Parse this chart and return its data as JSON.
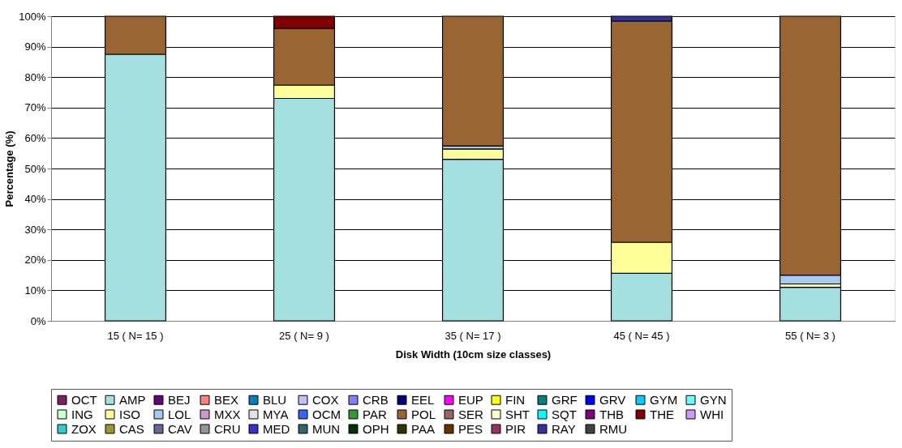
{
  "chart_data": {
    "type": "bar",
    "stacked": true,
    "xlabel": "Disk Width (10cm size classes)",
    "ylabel": "Percentage (%)",
    "categories": [
      "15 ( N= 15 )",
      "25 ( N= 9 )",
      "35 ( N= 17 )",
      "45 ( N= 45 )",
      "55 ( N= 3 )"
    ],
    "ylim": [
      0,
      100
    ],
    "yticks": [
      {
        "value": 0,
        "label": "0%"
      },
      {
        "value": 10,
        "label": "10%"
      },
      {
        "value": 20,
        "label": "20%"
      },
      {
        "value": 30,
        "label": "30%"
      },
      {
        "value": 40,
        "label": "40%"
      },
      {
        "value": 50,
        "label": "50%"
      },
      {
        "value": 60,
        "label": "60%"
      },
      {
        "value": 70,
        "label": "70%"
      },
      {
        "value": 80,
        "label": "80%"
      },
      {
        "value": 90,
        "label": "90%"
      },
      {
        "value": 100,
        "label": "100%"
      }
    ],
    "grid": "y",
    "legend": "bottom",
    "series": [
      {
        "name": "OCT",
        "color": "#7f1f5f",
        "values": [
          0,
          0,
          0,
          0,
          0
        ]
      },
      {
        "name": "AMP",
        "color": "#a4e0e0",
        "values": [
          87.5,
          73,
          53,
          15.6,
          11
        ]
      },
      {
        "name": "BEJ",
        "color": "#660080",
        "values": [
          0,
          0,
          0,
          0,
          0
        ]
      },
      {
        "name": "BEX",
        "color": "#ff8080",
        "values": [
          0,
          0,
          0,
          0,
          0
        ]
      },
      {
        "name": "BLU",
        "color": "#0080c0",
        "values": [
          0,
          0,
          0,
          0,
          0
        ]
      },
      {
        "name": "COX",
        "color": "#c0c0ff",
        "values": [
          0,
          0,
          0,
          0,
          0
        ]
      },
      {
        "name": "CRB",
        "color": "#8080ff",
        "values": [
          0,
          0,
          0,
          0,
          0
        ]
      },
      {
        "name": "EEL",
        "color": "#000080",
        "values": [
          0,
          0,
          0,
          0,
          0
        ]
      },
      {
        "name": "EUP",
        "color": "#ff00ff",
        "values": [
          0,
          0,
          0,
          0,
          0
        ]
      },
      {
        "name": "FIN",
        "color": "#ffff00",
        "values": [
          0,
          0,
          0,
          0,
          0
        ]
      },
      {
        "name": "GRF",
        "color": "#008080",
        "values": [
          0,
          0,
          0,
          0,
          0
        ]
      },
      {
        "name": "GRV",
        "color": "#0000ff",
        "values": [
          0,
          0,
          0,
          0,
          0
        ]
      },
      {
        "name": "GYM",
        "color": "#00ccff",
        "values": [
          0,
          0,
          0,
          0,
          0
        ]
      },
      {
        "name": "GYN",
        "color": "#66ffff",
        "values": [
          0,
          0,
          0,
          0,
          0
        ]
      },
      {
        "name": "ING",
        "color": "#ccffcc",
        "values": [
          0,
          0,
          0,
          0,
          0
        ]
      },
      {
        "name": "ISO",
        "color": "#ffff99",
        "values": [
          0,
          4.4,
          3.4,
          10.2,
          1.1
        ]
      },
      {
        "name": "LOL",
        "color": "#a6caf0",
        "values": [
          0,
          0,
          1,
          0,
          2.9
        ]
      },
      {
        "name": "MXX",
        "color": "#cc99cc",
        "values": [
          0,
          0,
          0,
          0,
          0
        ]
      },
      {
        "name": "MYA",
        "color": "#e3e3e3",
        "values": [
          0,
          0,
          0,
          0,
          0
        ]
      },
      {
        "name": "OCM",
        "color": "#3366ff",
        "values": [
          0,
          0,
          0,
          0,
          0
        ]
      },
      {
        "name": "PAR",
        "color": "#339933",
        "values": [
          0,
          0,
          0,
          0,
          0
        ]
      },
      {
        "name": "POL",
        "color": "#996633",
        "values": [
          12.5,
          18.6,
          42.6,
          72.6,
          85
        ]
      },
      {
        "name": "SER",
        "color": "#996666",
        "values": [
          0,
          0,
          0,
          0,
          0
        ]
      },
      {
        "name": "SHT",
        "color": "#ffffcc",
        "values": [
          0,
          0,
          0,
          0,
          0
        ]
      },
      {
        "name": "SQT",
        "color": "#00ffff",
        "values": [
          0,
          0,
          0,
          0,
          0
        ]
      },
      {
        "name": "THB",
        "color": "#800080",
        "values": [
          0,
          0,
          0,
          0,
          0
        ]
      },
      {
        "name": "THE",
        "color": "#800000",
        "values": [
          0,
          4,
          0,
          0,
          0
        ]
      },
      {
        "name": "WHI",
        "color": "#cc99ff",
        "values": [
          0,
          0,
          0,
          0,
          0
        ]
      },
      {
        "name": "ZOX",
        "color": "#33cccc",
        "values": [
          0,
          0,
          0,
          0,
          0
        ]
      },
      {
        "name": "CAS",
        "color": "#999933",
        "values": [
          0,
          0,
          0,
          0,
          0
        ]
      },
      {
        "name": "CAV",
        "color": "#666699",
        "values": [
          0,
          0,
          0,
          0,
          0
        ]
      },
      {
        "name": "CRU",
        "color": "#969696",
        "values": [
          0,
          0,
          0,
          0,
          0
        ]
      },
      {
        "name": "MED",
        "color": "#3333cc",
        "values": [
          0,
          0,
          0,
          0,
          0
        ]
      },
      {
        "name": "MUN",
        "color": "#336666",
        "values": [
          0,
          0,
          0,
          0,
          0
        ]
      },
      {
        "name": "OPH",
        "color": "#003300",
        "values": [
          0,
          0,
          0,
          0,
          0
        ]
      },
      {
        "name": "PAA",
        "color": "#333300",
        "values": [
          0,
          0,
          0,
          0,
          0
        ]
      },
      {
        "name": "PES",
        "color": "#663300",
        "values": [
          0,
          0,
          0,
          0,
          0
        ]
      },
      {
        "name": "PIR",
        "color": "#993366",
        "values": [
          0,
          0,
          0,
          0,
          0
        ]
      },
      {
        "name": "RAY",
        "color": "#333399",
        "values": [
          0,
          0,
          0,
          1.6,
          0
        ]
      },
      {
        "name": "RMU",
        "color": "#424242",
        "values": [
          0,
          0,
          0,
          0,
          0
        ]
      }
    ]
  }
}
